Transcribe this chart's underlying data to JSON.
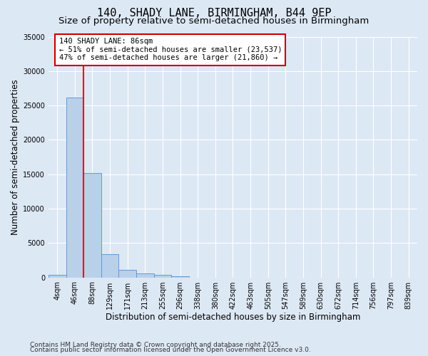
{
  "title": "140, SHADY LANE, BIRMINGHAM, B44 9EP",
  "subtitle": "Size of property relative to semi-detached houses in Birmingham",
  "xlabel": "Distribution of semi-detached houses by size in Birmingham",
  "ylabel": "Number of semi-detached properties",
  "footnote1": "Contains HM Land Registry data © Crown copyright and database right 2025.",
  "footnote2": "Contains public sector information licensed under the Open Government Licence v3.0.",
  "categories": [
    "4sqm",
    "46sqm",
    "88sqm",
    "129sqm",
    "171sqm",
    "213sqm",
    "255sqm",
    "296sqm",
    "338sqm",
    "380sqm",
    "422sqm",
    "463sqm",
    "505sqm",
    "547sqm",
    "589sqm",
    "630sqm",
    "672sqm",
    "714sqm",
    "756sqm",
    "797sqm",
    "839sqm"
  ],
  "values": [
    370,
    26100,
    15200,
    3350,
    1100,
    550,
    380,
    150,
    0,
    0,
    0,
    0,
    0,
    0,
    0,
    0,
    0,
    0,
    0,
    0,
    0
  ],
  "bar_color": "#b8d0ea",
  "bar_edge_color": "#6699cc",
  "red_line_index": 2,
  "annotation_title": "140 SHADY LANE: 86sqm",
  "annotation_line1": "← 51% of semi-detached houses are smaller (23,537)",
  "annotation_line2": "47% of semi-detached houses are larger (21,860) →",
  "annotation_box_color": "#ffffff",
  "annotation_box_edge": "#cc0000",
  "ylim": [
    0,
    35000
  ],
  "yticks": [
    0,
    5000,
    10000,
    15000,
    20000,
    25000,
    30000,
    35000
  ],
  "bg_color": "#dde8f5",
  "plot_bg_color": "#dde8f5",
  "grid_color": "#ffffff",
  "title_fontsize": 11,
  "subtitle_fontsize": 9.5,
  "axis_label_fontsize": 8.5,
  "tick_fontsize": 7,
  "footnote_fontsize": 6.5
}
